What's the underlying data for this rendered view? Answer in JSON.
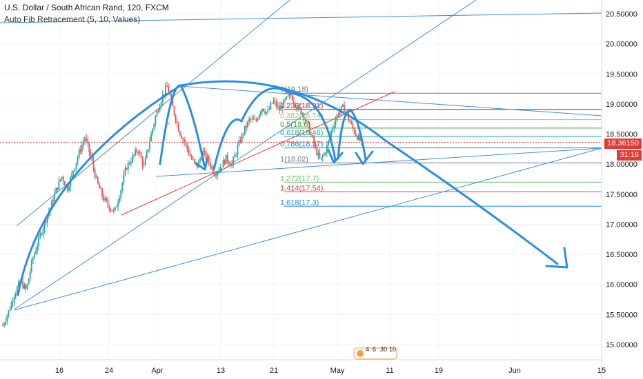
{
  "header": {
    "title": "U.S. Dollar / South African Rand, 120, FXCM",
    "indicator": "Auto Fib Retracement (5, 10, Values)"
  },
  "price_tags": {
    "last": "18.36150",
    "countdown": "31:16"
  },
  "events_badge": [
    "4",
    "6",
    "30",
    "10"
  ],
  "colors": {
    "up": "#26a69a",
    "down": "#ef5350",
    "pattern": "#2a8ee0",
    "trend_blue": "#3d8fe0",
    "trend_red": "#e53935",
    "last_price": "#e53935"
  },
  "chart_data": {
    "type": "candlestick",
    "title": "U.S. Dollar / South African Rand, 120, FXCM",
    "ylim": [
      14.8,
      20.7
    ],
    "y_ticks": [
      "15.00000",
      "15.50000",
      "16.00000",
      "16.50000",
      "17.00000",
      "17.50000",
      "18.00000",
      "18.50000",
      "19.00000",
      "19.50000",
      "20.00000",
      "20.50000"
    ],
    "x_ticks": [
      "16",
      "24",
      "Apr",
      "13",
      "21",
      "May",
      "11",
      "19",
      "Jun",
      "15"
    ],
    "last_price": 18.3615,
    "fib_levels": [
      {
        "ratio": "0",
        "value": "19.18",
        "label_color": "#787b86",
        "line_color": "#787b86"
      },
      {
        "ratio": "0.236",
        "value": "18.91",
        "label_color": "#b71c1c",
        "line_color": "#b71c1c"
      },
      {
        "ratio": "0.382",
        "value": "18.74",
        "label_color": "#9ccc65",
        "line_color": "#9ccc65"
      },
      {
        "ratio": "0.5",
        "value": "18.6",
        "label_color": "#43a047",
        "line_color": "#43a047"
      },
      {
        "ratio": "0.618",
        "value": "18.46",
        "label_color": "#26a69a",
        "line_color": "#26a69a"
      },
      {
        "ratio": "0.786",
        "value": "18.27",
        "label_color": "#1e88e5",
        "line_color": "#1e88e5"
      },
      {
        "ratio": "1",
        "value": "18.02",
        "label_color": "#787b86",
        "line_color": "#787b86"
      },
      {
        "ratio": "1.272",
        "value": "17.7",
        "label_color": "#66bb6a",
        "line_color": "#66bb6a"
      },
      {
        "ratio": "1.414",
        "value": "17.54",
        "label_color": "#e53935",
        "line_color": "#e53935"
      },
      {
        "ratio": "1.618",
        "value": "17.3",
        "label_color": "#1e88e5",
        "line_color": "#1e88e5"
      }
    ],
    "price_path": [
      [
        15.32,
        15.55,
        15.85,
        16.05,
        15.9,
        16.4,
        16.7,
        17.0,
        17.25,
        17.55,
        17.8,
        17.6,
        17.9,
        18.2,
        18.45,
        18.1,
        17.7,
        17.45,
        17.3,
        17.2,
        17.55,
        17.95,
        18.1,
        18.25,
        17.95,
        18.4,
        18.8,
        19.1,
        19.3,
        18.9,
        18.55,
        18.35,
        18.1,
        17.95,
        18.2,
        18.05,
        17.85,
        17.95,
        18.1,
        18.0,
        18.3,
        18.55,
        18.75,
        18.7,
        18.95,
        18.85,
        19.05,
        18.9,
        19.05,
        19.15,
        18.95,
        18.85,
        18.6,
        18.3,
        18.05,
        18.25,
        18.6,
        18.85,
        18.95,
        18.7,
        18.5,
        18.36
      ]
    ]
  }
}
